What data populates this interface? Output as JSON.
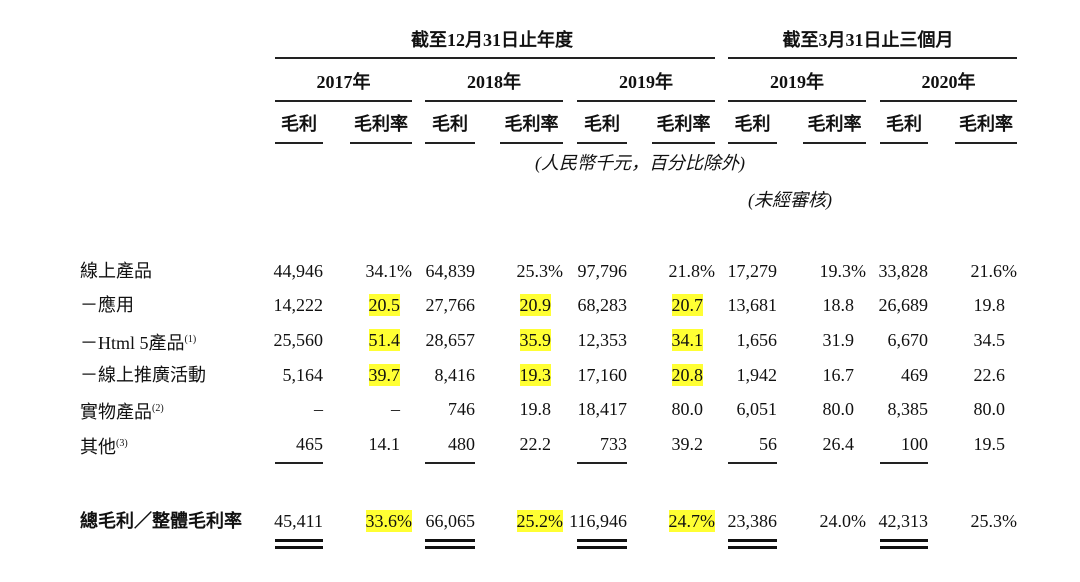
{
  "header": {
    "period_annual": "截至12月31日止年度",
    "period_quarter": "截至3月31日止三個月",
    "years": [
      "2017年",
      "2018年",
      "2019年",
      "2019年",
      "2020年"
    ],
    "columns": [
      "毛利",
      "毛利率",
      "毛利",
      "毛利率",
      "毛利",
      "毛利率",
      "毛利",
      "毛利率",
      "毛利",
      "毛利率"
    ],
    "unit_note": "(人民幣千元，百分比除外)",
    "audit_note": "(未經審核)"
  },
  "table": {
    "rows": [
      {
        "label": "線上產品",
        "cells": [
          "44,946",
          "34.1%",
          "64,839",
          "25.3%",
          "97,796",
          "21.8%",
          "17,279",
          "19.3%",
          "33,828",
          "21.6%"
        ]
      },
      {
        "label": "－應用",
        "cells": [
          "14,222",
          "20.5",
          "27,766",
          "20.9",
          "68,283",
          "20.7",
          "13,681",
          "18.8",
          "26,689",
          "19.8"
        ]
      },
      {
        "label": "－Html 5產品",
        "note": "(1)",
        "cells": [
          "25,560",
          "51.4",
          "28,657",
          "35.9",
          "12,353",
          "34.1",
          "1,656",
          "31.9",
          "6,670",
          "34.5"
        ]
      },
      {
        "label": "－線上推廣活動",
        "cells": [
          "5,164",
          "39.7",
          "8,416",
          "19.3",
          "17,160",
          "20.8",
          "1,942",
          "16.7",
          "469",
          "22.6"
        ]
      },
      {
        "label": "實物產品",
        "note": "(2)",
        "cells": [
          "–",
          "–",
          "746",
          "19.8",
          "18,417",
          "80.0",
          "6,051",
          "80.0",
          "8,385",
          "80.0"
        ]
      },
      {
        "label": "其他",
        "note": "(3)",
        "cells": [
          "465",
          "14.1",
          "480",
          "22.2",
          "733",
          "39.2",
          "56",
          "26.4",
          "100",
          "19.5"
        ]
      }
    ],
    "total": {
      "label": "總毛利／整體毛利率",
      "cells": [
        "45,411",
        "33.6%",
        "66,065",
        "25.2%",
        "116,946",
        "24.7%",
        "23,386",
        "24.0%",
        "42,313",
        "25.3%"
      ]
    }
  }
}
